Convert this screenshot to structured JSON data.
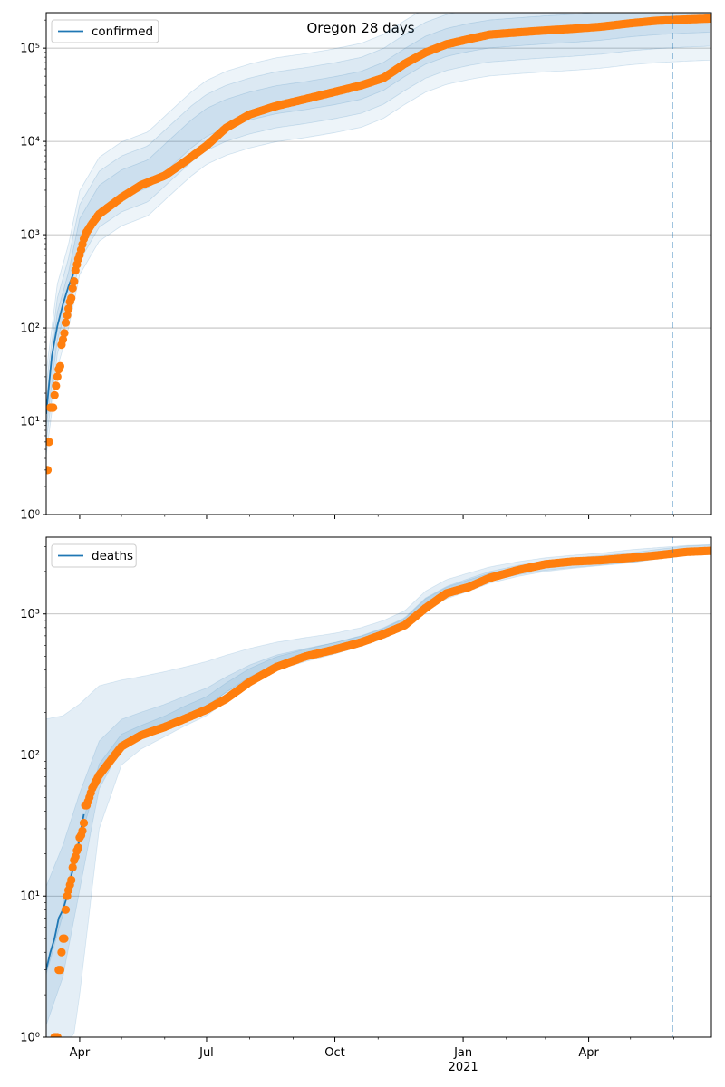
{
  "figure": {
    "title": "Oregon 28 days"
  },
  "colors": {
    "model_line": "#1f77b4",
    "observed": "#ff7f0e",
    "band": "#1f77b4",
    "grid": "#b0b0b0",
    "cutoff": "#1f77b4"
  },
  "x_axis": {
    "start": "2020-03-08",
    "end": "2021-06-28",
    "major_ticks": [
      {
        "date": "2020-04-01",
        "label": "Apr",
        "sublabel": ""
      },
      {
        "date": "2020-07-01",
        "label": "Jul",
        "sublabel": ""
      },
      {
        "date": "2020-10-01",
        "label": "Oct",
        "sublabel": ""
      },
      {
        "date": "2021-01-01",
        "label": "Jan",
        "sublabel": "2021"
      },
      {
        "date": "2021-04-01",
        "label": "Apr",
        "sublabel": ""
      }
    ],
    "forecast_start": "2021-05-31"
  },
  "chart_data": [
    {
      "type": "line",
      "panel": "top",
      "legend": "confirmed",
      "legend_position": "top-left",
      "y_scale": "log",
      "ylim": [
        1,
        240000
      ],
      "y_ticks": [
        1,
        10,
        100,
        1000,
        10000,
        100000
      ],
      "y_tick_labels": [
        "10⁰",
        "10¹",
        "10²",
        "10³",
        "10⁴",
        "10⁵"
      ],
      "grid": "horizontal",
      "model_dates": [
        "2020-03-08",
        "2020-03-12",
        "2020-03-16",
        "2020-03-20",
        "2020-03-24",
        "2020-03-28"
      ],
      "model_values": [
        12,
        50,
        105,
        180,
        280,
        400
      ],
      "band_dates": [
        "2020-03-08",
        "2020-03-16",
        "2020-03-24",
        "2020-04-01",
        "2020-04-15",
        "2020-05-01",
        "2020-05-20",
        "2020-06-05",
        "2020-06-20",
        "2020-07-01",
        "2020-07-15",
        "2020-08-01",
        "2020-08-20",
        "2020-09-10",
        "2020-10-01",
        "2020-10-20",
        "2020-11-05",
        "2020-11-20",
        "2020-12-05",
        "2020-12-20",
        "2021-01-05",
        "2021-01-20",
        "2021-02-10",
        "2021-03-01",
        "2021-03-20",
        "2021-04-10",
        "2021-05-01",
        "2021-05-20",
        "2021-06-10",
        "2021-06-28"
      ],
      "band_center": [
        12,
        105,
        280,
        1050,
        2400,
        3500,
        4500,
        7500,
        12000,
        16000,
        20000,
        24000,
        28000,
        31000,
        35000,
        40000,
        50000,
        70000,
        95000,
        115000,
        130000,
        142000,
        150000,
        157000,
        163000,
        172000,
        187000,
        197000,
        205000,
        210000
      ],
      "band_widths": [
        0.45,
        0.3,
        0.15
      ],
      "observed_start": "2020-03-09",
      "observed_anchors": [
        [
          "2020-03-09",
          3
        ],
        [
          "2020-03-10",
          6
        ],
        [
          "2020-03-11",
          14
        ],
        [
          "2020-03-13",
          14
        ],
        [
          "2020-03-14",
          19
        ],
        [
          "2020-03-15",
          24
        ],
        [
          "2020-03-16",
          30
        ],
        [
          "2020-03-17",
          36
        ],
        [
          "2020-03-18",
          39
        ],
        [
          "2020-03-19",
          66
        ],
        [
          "2020-03-20",
          75
        ],
        [
          "2020-03-21",
          88
        ],
        [
          "2020-03-22",
          114
        ],
        [
          "2020-03-23",
          137
        ],
        [
          "2020-03-24",
          161
        ],
        [
          "2020-03-25",
          191
        ],
        [
          "2020-03-26",
          209
        ],
        [
          "2020-03-27",
          266
        ],
        [
          "2020-03-28",
          316
        ],
        [
          "2020-03-29",
          414
        ],
        [
          "2020-03-30",
          479
        ],
        [
          "2020-03-31",
          548
        ],
        [
          "2020-04-01",
          606
        ],
        [
          "2020-04-02",
          690
        ],
        [
          "2020-04-04",
          899
        ],
        [
          "2020-04-06",
          1068
        ],
        [
          "2020-04-10",
          1321
        ],
        [
          "2020-04-15",
          1663
        ],
        [
          "2020-05-01",
          2510
        ],
        [
          "2020-05-15",
          3400
        ],
        [
          "2020-06-01",
          4300
        ],
        [
          "2020-06-15",
          6000
        ],
        [
          "2020-07-01",
          9000
        ],
        [
          "2020-07-15",
          14000
        ],
        [
          "2020-08-01",
          19500
        ],
        [
          "2020-08-20",
          24000
        ],
        [
          "2020-09-10",
          28500
        ],
        [
          "2020-10-01",
          34000
        ],
        [
          "2020-10-20",
          40000
        ],
        [
          "2020-11-05",
          48000
        ],
        [
          "2020-11-20",
          68000
        ],
        [
          "2020-12-05",
          90000
        ],
        [
          "2020-12-20",
          110000
        ],
        [
          "2021-01-05",
          125000
        ],
        [
          "2021-01-20",
          140000
        ],
        [
          "2021-02-10",
          148000
        ],
        [
          "2021-03-01",
          155000
        ],
        [
          "2021-03-20",
          161000
        ],
        [
          "2021-04-10",
          170000
        ],
        [
          "2021-05-01",
          185000
        ],
        [
          "2021-05-20",
          197000
        ],
        [
          "2021-06-10",
          203000
        ],
        [
          "2021-06-28",
          208000
        ]
      ]
    },
    {
      "type": "line",
      "panel": "bottom",
      "legend": "deaths",
      "legend_position": "top-left",
      "y_scale": "log",
      "ylim": [
        1,
        3500
      ],
      "y_ticks": [
        1,
        10,
        100,
        1000
      ],
      "y_tick_labels": [
        "10⁰",
        "10¹",
        "10²",
        "10³"
      ],
      "grid": "horizontal",
      "model_dates": [
        "2020-03-08",
        "2020-03-11",
        "2020-03-14",
        "2020-03-17",
        "2020-03-20",
        "2020-03-23",
        "2020-03-26",
        "2020-03-29",
        "2020-04-01",
        "2020-04-04"
      ],
      "model_values": [
        3,
        4,
        5,
        7,
        8,
        10,
        14,
        18,
        26,
        38
      ],
      "band_dates": [
        "2020-03-08",
        "2020-03-20",
        "2020-04-01",
        "2020-04-15",
        "2020-05-01",
        "2020-05-15",
        "2020-06-01",
        "2020-06-15",
        "2020-07-01",
        "2020-07-15",
        "2020-08-01",
        "2020-08-20",
        "2020-09-10",
        "2020-10-01",
        "2020-10-20",
        "2020-11-05",
        "2020-11-20",
        "2020-12-05",
        "2020-12-20",
        "2021-01-05",
        "2021-01-20",
        "2021-02-10",
        "2021-03-01",
        "2021-03-20",
        "2021-04-10",
        "2021-05-01",
        "2021-05-20",
        "2021-06-10",
        "2021-06-28"
      ],
      "band_center": [
        3,
        8,
        26,
        80,
        130,
        150,
        175,
        205,
        240,
        300,
        380,
        460,
        520,
        580,
        650,
        740,
        870,
        1200,
        1450,
        1650,
        1850,
        2050,
        2200,
        2300,
        2400,
        2500,
        2650,
        2800,
        2850
      ],
      "band_upper": [
        180,
        190,
        230,
        310,
        340,
        360,
        390,
        420,
        460,
        510,
        570,
        630,
        680,
        730,
        800,
        900,
        1050,
        1450,
        1750,
        1950,
        2150,
        2350,
        2500,
        2600,
        2700,
        2850,
        2950,
        3050,
        3100
      ],
      "band_lower": [
        0.2,
        0.3,
        2,
        30,
        85,
        110,
        135,
        160,
        190,
        240,
        320,
        400,
        460,
        520,
        590,
        670,
        780,
        1050,
        1280,
        1450,
        1650,
        1850,
        2000,
        2100,
        2200,
        2300,
        2450,
        2600,
        2650
      ],
      "observed_start": "2020-03-08",
      "observed_anchors": [
        [
          "2020-03-14",
          1
        ],
        [
          "2020-03-15",
          1
        ],
        [
          "2020-03-16",
          1
        ],
        [
          "2020-03-17",
          3
        ],
        [
          "2020-03-18",
          3
        ],
        [
          "2020-03-19",
          4
        ],
        [
          "2020-03-20",
          5
        ],
        [
          "2020-03-21",
          5
        ],
        [
          "2020-03-22",
          8
        ],
        [
          "2020-03-23",
          10
        ],
        [
          "2020-03-24",
          11
        ],
        [
          "2020-03-25",
          12
        ],
        [
          "2020-03-26",
          13
        ],
        [
          "2020-03-27",
          16
        ],
        [
          "2020-03-28",
          18
        ],
        [
          "2020-03-29",
          19
        ],
        [
          "2020-03-30",
          21
        ],
        [
          "2020-03-31",
          22
        ],
        [
          "2020-04-01",
          26
        ],
        [
          "2020-04-02",
          27
        ],
        [
          "2020-04-03",
          29
        ],
        [
          "2020-04-04",
          33
        ],
        [
          "2020-04-05",
          44
        ],
        [
          "2020-04-06",
          44
        ],
        [
          "2020-04-08",
          50
        ],
        [
          "2020-04-10",
          58
        ],
        [
          "2020-04-15",
          72
        ],
        [
          "2020-05-01",
          115
        ],
        [
          "2020-05-15",
          138
        ],
        [
          "2020-06-01",
          158
        ],
        [
          "2020-06-15",
          180
        ],
        [
          "2020-07-01",
          210
        ],
        [
          "2020-07-15",
          250
        ],
        [
          "2020-08-01",
          330
        ],
        [
          "2020-08-20",
          420
        ],
        [
          "2020-09-10",
          500
        ],
        [
          "2020-10-01",
          560
        ],
        [
          "2020-10-20",
          630
        ],
        [
          "2020-11-05",
          720
        ],
        [
          "2020-11-20",
          830
        ],
        [
          "2020-12-05",
          1100
        ],
        [
          "2020-12-20",
          1400
        ],
        [
          "2021-01-05",
          1550
        ],
        [
          "2021-01-20",
          1800
        ],
        [
          "2021-02-10",
          2050
        ],
        [
          "2021-03-01",
          2250
        ],
        [
          "2021-03-20",
          2350
        ],
        [
          "2021-04-10",
          2400
        ],
        [
          "2021-05-01",
          2500
        ],
        [
          "2021-05-20",
          2600
        ],
        [
          "2021-06-10",
          2750
        ],
        [
          "2021-06-28",
          2800
        ]
      ]
    }
  ]
}
